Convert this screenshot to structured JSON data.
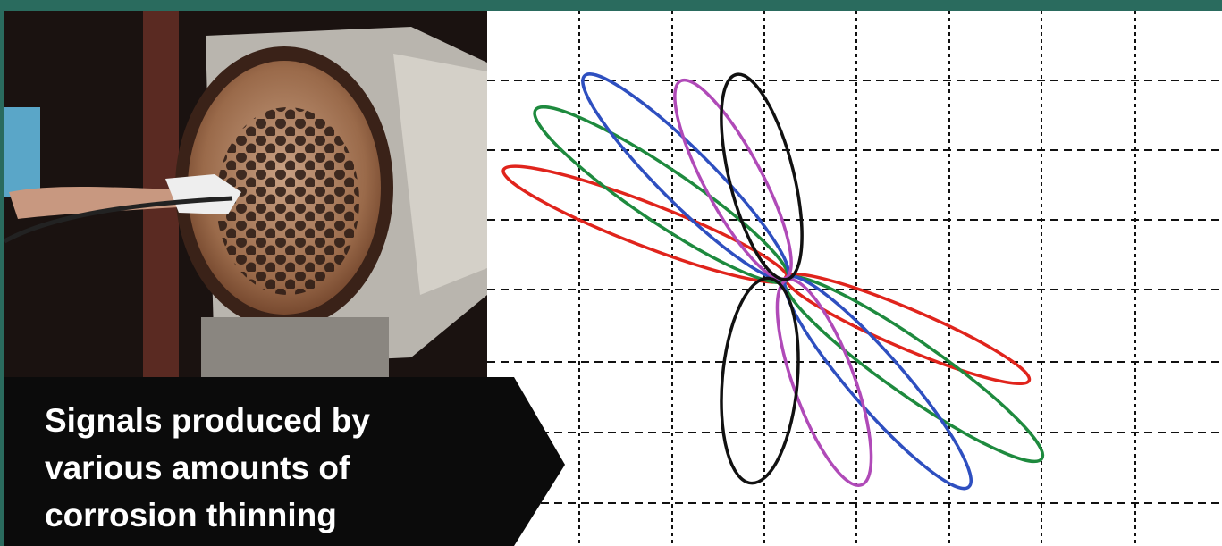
{
  "caption": {
    "lines": [
      "Signals produced by",
      "various amounts of",
      "corrosion thinning"
    ]
  }
}
